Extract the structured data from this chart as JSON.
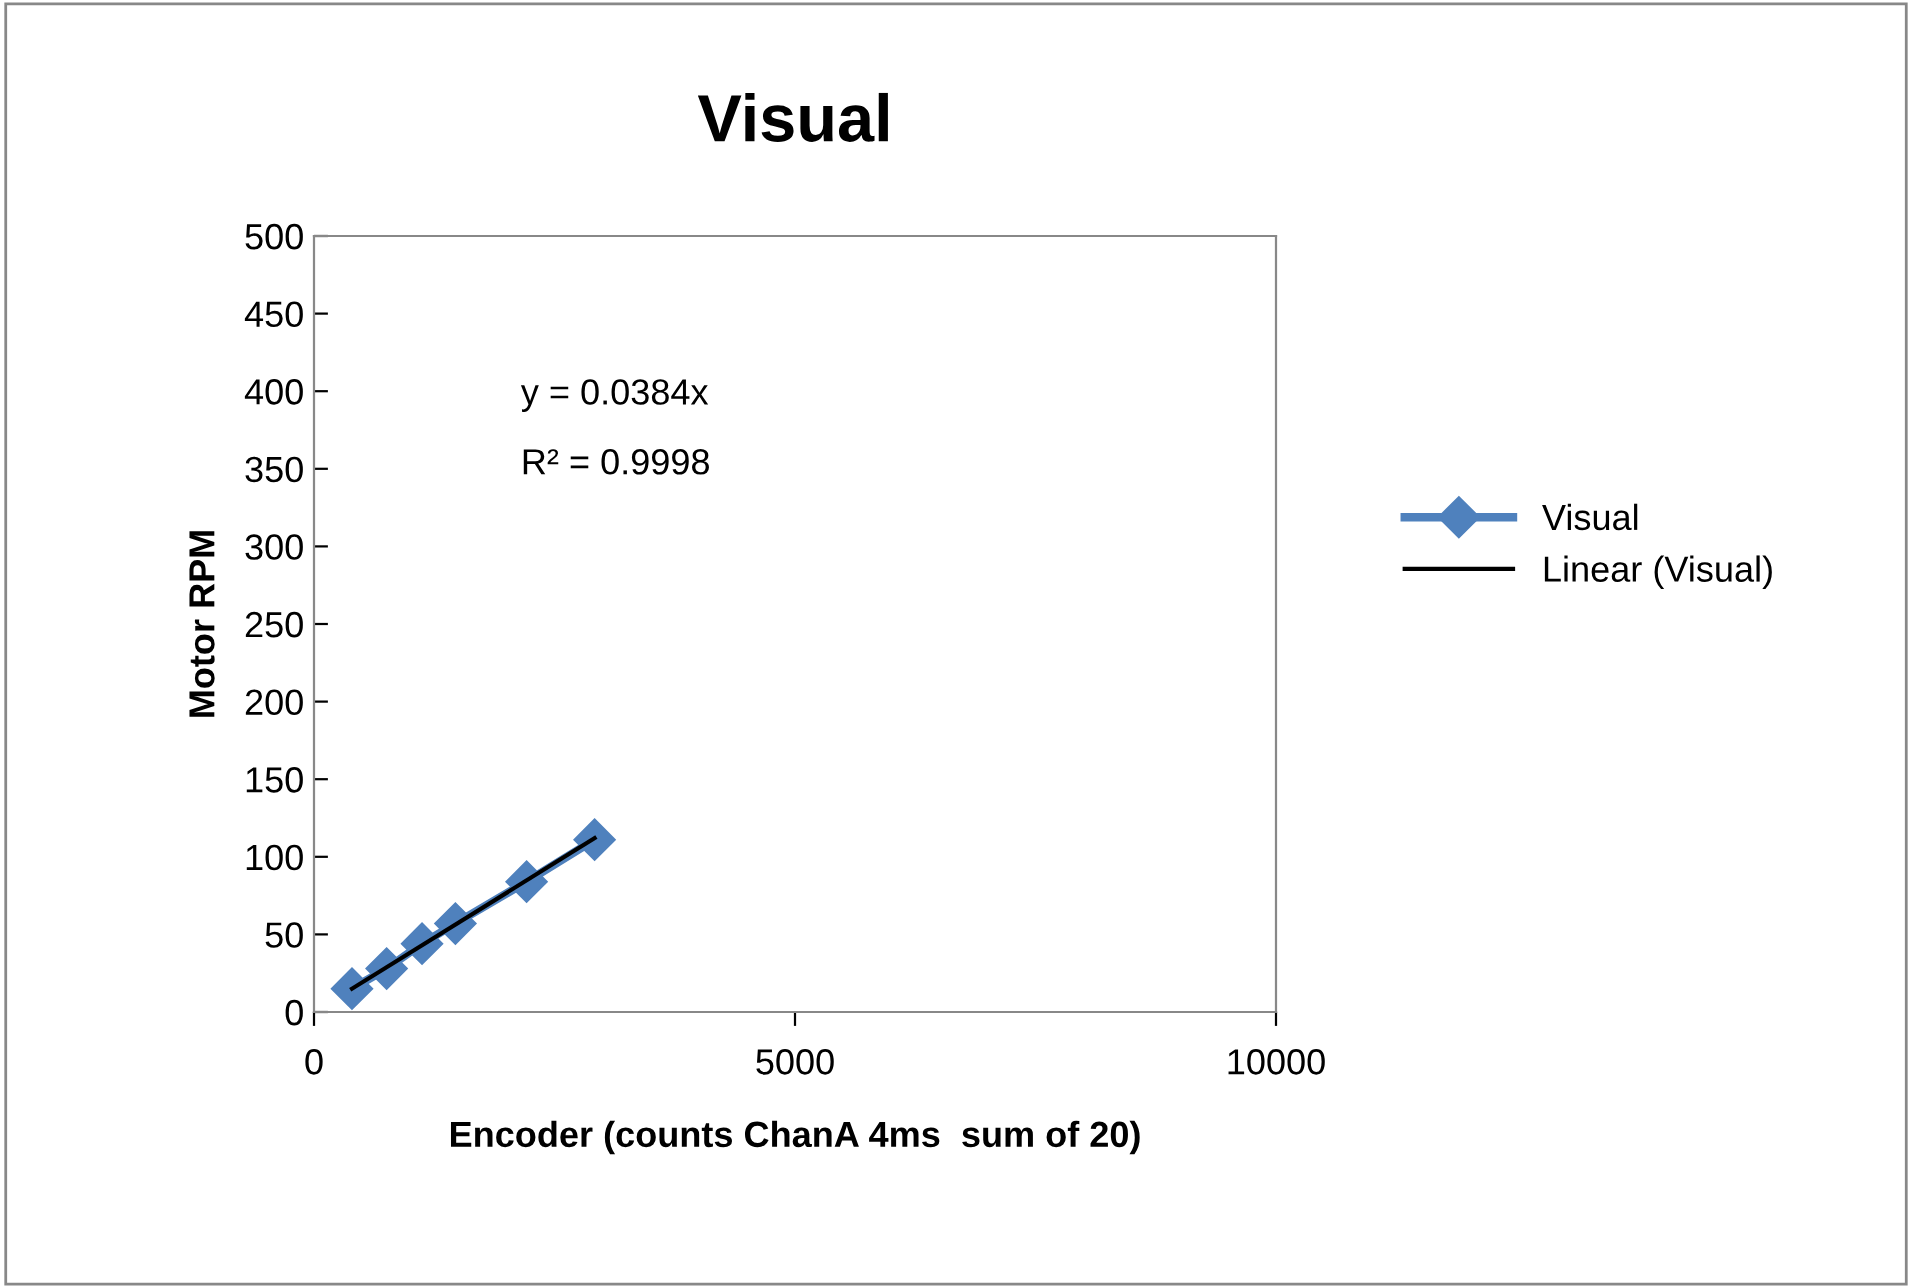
{
  "chart_data": {
    "type": "line",
    "title": "Visual",
    "xlabel": "Encoder (counts ChanA 4ms  sum of 20)",
    "ylabel": "Motor RPM",
    "xlim": [
      0,
      10000
    ],
    "xticks": [
      0,
      5000,
      10000
    ],
    "ylim": [
      0,
      500
    ],
    "yticks": [
      0,
      50,
      100,
      150,
      200,
      250,
      300,
      350,
      400,
      450,
      500
    ],
    "grid": false,
    "legend": "right",
    "annotations": [
      "y = 0.0384x",
      "R² = 0.9998"
    ],
    "series": [
      {
        "name": "Visual",
        "color": "#4f81bd",
        "marker": "diamond",
        "line_style": "solid",
        "x": [
          395,
          755,
          1123,
          1470,
          2210,
          2917
        ],
        "values": [
          15,
          28,
          44,
          57,
          84,
          111
        ]
      },
      {
        "name": "Linear (Visual)",
        "color": "#000000",
        "marker": "none",
        "line_style": "solid",
        "x": [
          395,
          2917
        ],
        "values": [
          15,
          112
        ]
      }
    ]
  }
}
